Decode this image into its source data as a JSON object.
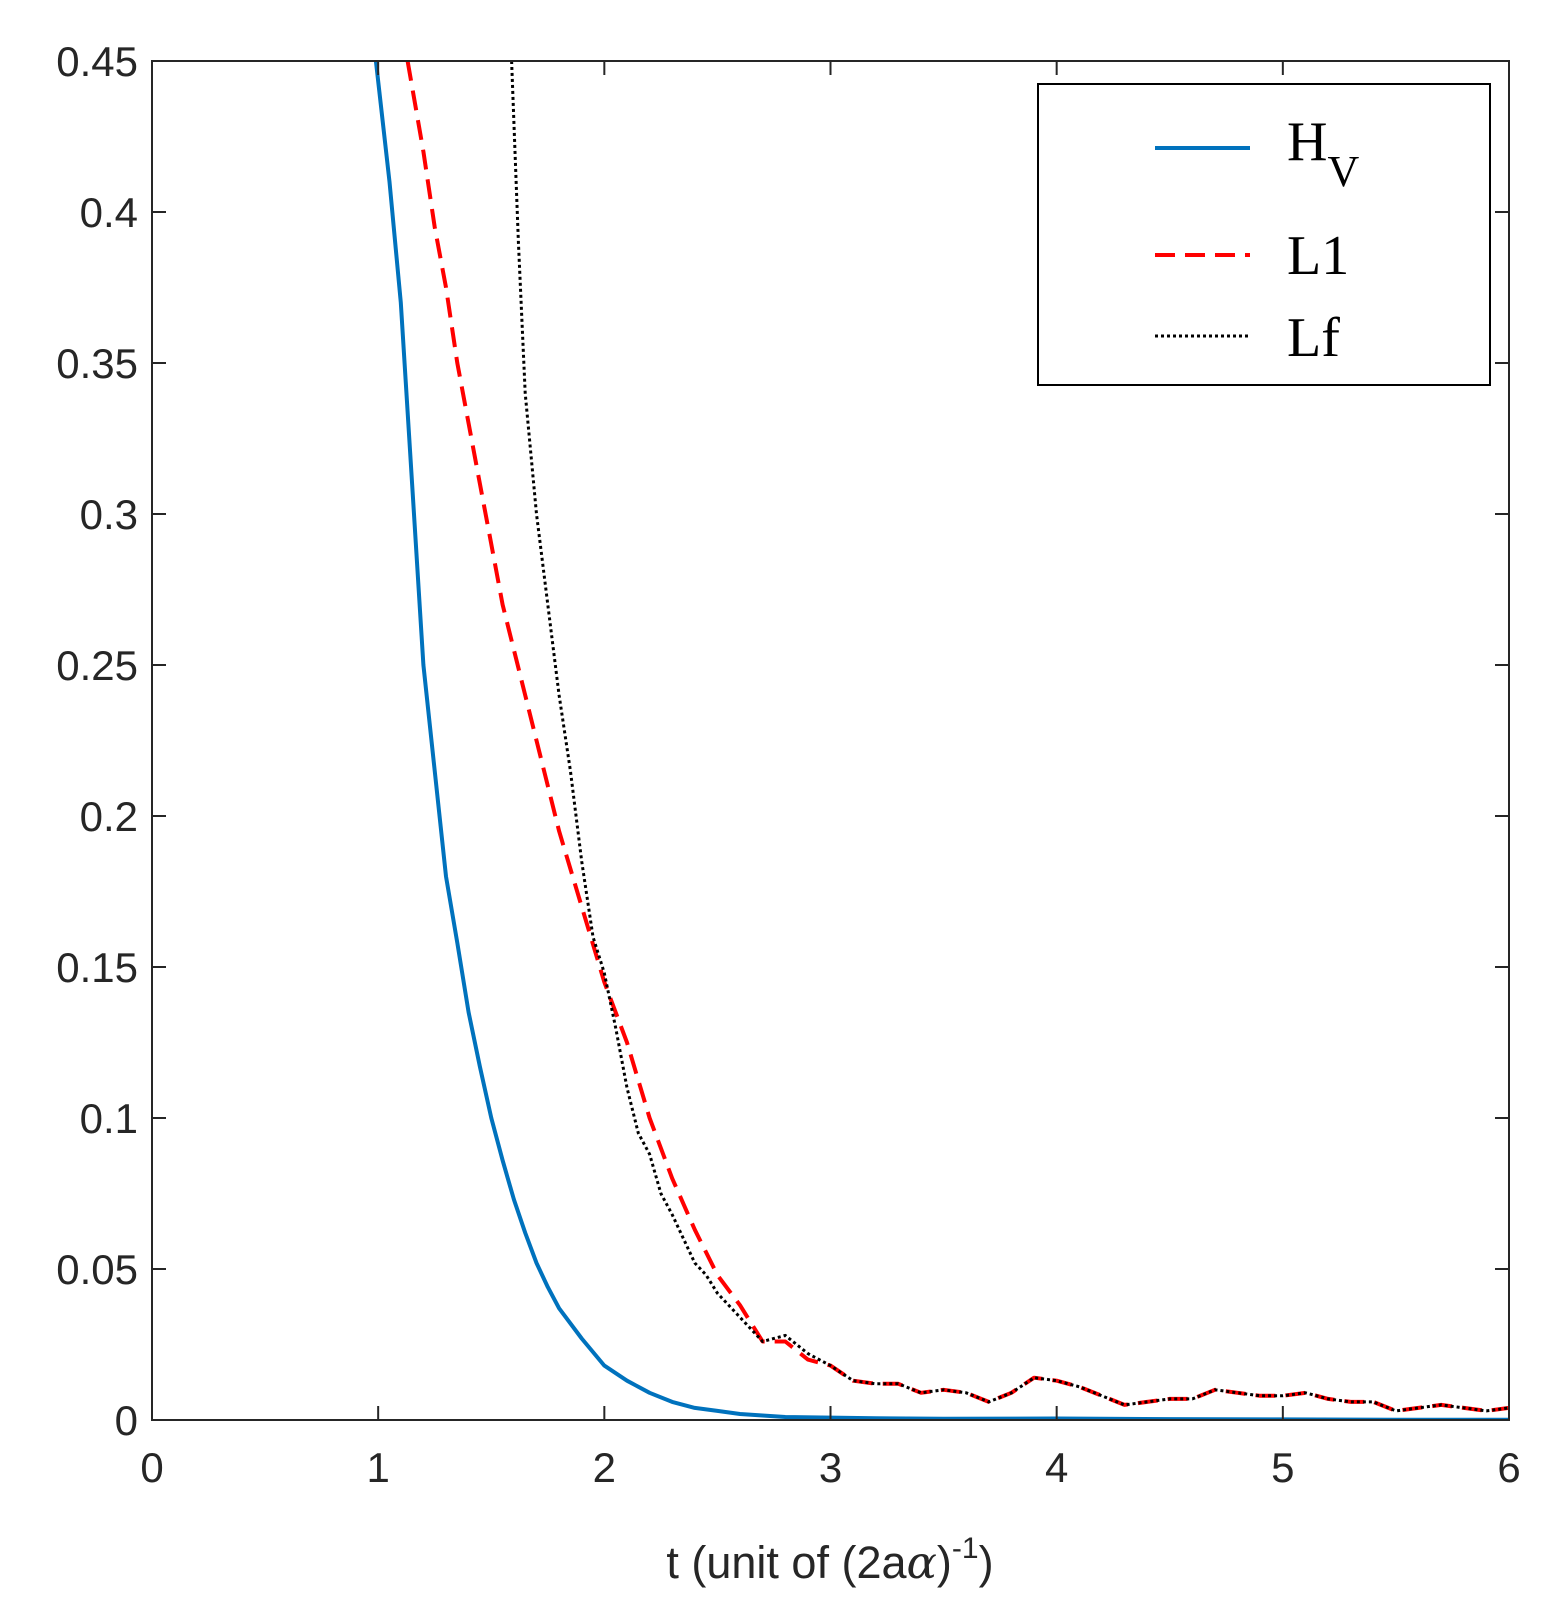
{
  "chart_data": {
    "type": "line",
    "title": "",
    "xlabel_parts": {
      "prefix": "t (unit of (2a",
      "symbol": "α",
      "suffix": ")",
      "superscript": "-1",
      "close": ")"
    },
    "ylabel": "",
    "xlim": [
      0,
      6
    ],
    "ylim": [
      0,
      0.45
    ],
    "xticks": [
      0,
      1,
      2,
      3,
      4,
      5,
      6
    ],
    "xtick_labels": [
      "0",
      "1",
      "2",
      "3",
      "4",
      "5",
      "6"
    ],
    "yticks": [
      0,
      0.05,
      0.1,
      0.15,
      0.2,
      0.25,
      0.3,
      0.35,
      0.4,
      0.45
    ],
    "ytick_labels": [
      "0",
      "0.05",
      "0.1",
      "0.15",
      "0.2",
      "0.25",
      "0.3",
      "0.35",
      "0.4",
      "0.45"
    ],
    "grid": false,
    "legend_position": "top-right",
    "series": [
      {
        "name": "H_V",
        "label_main": "H",
        "label_sub": "V",
        "color": "#0072BD",
        "style": "solid",
        "x": [
          0.99,
          1.05,
          1.1,
          1.15,
          1.2,
          1.25,
          1.3,
          1.35,
          1.4,
          1.45,
          1.5,
          1.55,
          1.6,
          1.65,
          1.7,
          1.75,
          1.8,
          1.9,
          2.0,
          2.1,
          2.2,
          2.3,
          2.4,
          2.5,
          2.6,
          2.7,
          2.8,
          3.0,
          3.2,
          3.5,
          4.0,
          4.5,
          5.0,
          5.5,
          6.0
        ],
        "y": [
          0.45,
          0.41,
          0.37,
          0.31,
          0.25,
          0.215,
          0.18,
          0.158,
          0.135,
          0.117,
          0.1,
          0.086,
          0.073,
          0.062,
          0.052,
          0.044,
          0.037,
          0.027,
          0.018,
          0.013,
          0.009,
          0.006,
          0.004,
          0.003,
          0.002,
          0.0015,
          0.001,
          0.0008,
          0.0006,
          0.0004,
          0.0005,
          0.0003,
          0.0002,
          0.0001,
          0.0001
        ]
      },
      {
        "name": "L1",
        "label_main": "L1",
        "label_sub": "",
        "color": "#FF0000",
        "style": "dashed",
        "x": [
          1.13,
          1.2,
          1.25,
          1.3,
          1.35,
          1.4,
          1.45,
          1.5,
          1.55,
          1.6,
          1.65,
          1.7,
          1.75,
          1.8,
          1.9,
          2.0,
          2.1,
          2.2,
          2.3,
          2.4,
          2.5,
          2.6,
          2.7,
          2.8,
          2.9,
          3.0,
          3.1,
          3.2,
          3.3,
          3.4,
          3.5,
          3.6,
          3.7,
          3.8,
          3.9,
          4.0,
          4.1,
          4.2,
          4.3,
          4.4,
          4.5,
          4.6,
          4.7,
          4.8,
          4.9,
          5.0,
          5.1,
          5.2,
          5.3,
          5.4,
          5.5,
          5.6,
          5.7,
          5.8,
          5.9,
          6.0
        ],
        "y": [
          0.45,
          0.42,
          0.395,
          0.375,
          0.35,
          0.33,
          0.31,
          0.29,
          0.27,
          0.255,
          0.24,
          0.225,
          0.21,
          0.195,
          0.17,
          0.145,
          0.125,
          0.1,
          0.08,
          0.063,
          0.048,
          0.038,
          0.026,
          0.026,
          0.02,
          0.018,
          0.013,
          0.012,
          0.012,
          0.009,
          0.01,
          0.009,
          0.006,
          0.009,
          0.014,
          0.013,
          0.011,
          0.008,
          0.005,
          0.006,
          0.007,
          0.007,
          0.01,
          0.009,
          0.008,
          0.008,
          0.009,
          0.007,
          0.006,
          0.006,
          0.003,
          0.004,
          0.005,
          0.004,
          0.003,
          0.004
        ]
      },
      {
        "name": "Lf",
        "label_main": "Lf",
        "label_sub": "",
        "color": "#000000",
        "style": "dotted",
        "x": [
          1.59,
          1.62,
          1.65,
          1.7,
          1.75,
          1.8,
          1.85,
          1.9,
          1.95,
          2.0,
          2.05,
          2.1,
          2.15,
          2.2,
          2.25,
          2.3,
          2.35,
          2.4,
          2.45,
          2.5,
          2.6,
          2.7,
          2.8,
          2.9,
          3.0,
          3.1,
          3.2,
          3.3,
          3.4,
          3.5,
          3.6,
          3.7,
          3.8,
          3.9,
          4.0,
          4.1,
          4.2,
          4.3,
          4.4,
          4.5,
          4.6,
          4.7,
          4.8,
          4.9,
          5.0,
          5.1,
          5.2,
          5.3,
          5.4,
          5.5,
          5.6,
          5.7,
          5.8,
          5.9,
          6.0
        ],
        "y": [
          0.45,
          0.39,
          0.34,
          0.3,
          0.27,
          0.24,
          0.215,
          0.185,
          0.16,
          0.148,
          0.13,
          0.11,
          0.095,
          0.088,
          0.075,
          0.068,
          0.06,
          0.052,
          0.048,
          0.042,
          0.034,
          0.026,
          0.028,
          0.022,
          0.018,
          0.013,
          0.012,
          0.012,
          0.009,
          0.01,
          0.009,
          0.006,
          0.009,
          0.014,
          0.013,
          0.011,
          0.008,
          0.005,
          0.006,
          0.007,
          0.007,
          0.01,
          0.009,
          0.008,
          0.008,
          0.009,
          0.007,
          0.006,
          0.006,
          0.003,
          0.004,
          0.005,
          0.004,
          0.003,
          0.004
        ]
      }
    ]
  }
}
